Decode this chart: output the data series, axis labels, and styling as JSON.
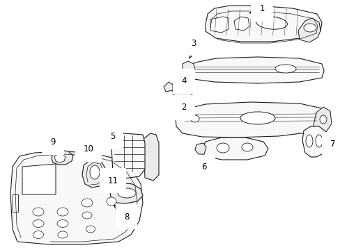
{
  "bg_color": "#ffffff",
  "line_color": "#1a1a1a",
  "lw": 0.8,
  "fig_width": 4.89,
  "fig_height": 3.6,
  "dpi": 100,
  "label_fontsize": 8.5
}
